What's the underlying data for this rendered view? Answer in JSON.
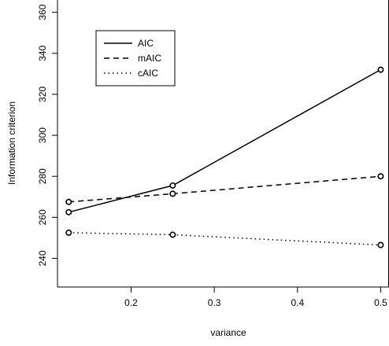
{
  "chart_data": {
    "type": "line",
    "title": "",
    "xlabel": "variance",
    "ylabel": "Information criterion",
    "x": [
      0.125,
      0.25,
      0.5
    ],
    "x_ticks": [
      0.2,
      0.3,
      0.4,
      0.5
    ],
    "x_tick_labels": [
      "0.2",
      "0.3",
      "0.4",
      "0.5"
    ],
    "y_ticks": [
      240,
      260,
      280,
      300,
      320,
      340,
      360
    ],
    "y_tick_labels": [
      "240",
      "260",
      "280",
      "300",
      "320",
      "340",
      "360"
    ],
    "xlim": [
      0.1115,
      0.51
    ],
    "ylim": [
      226,
      366
    ],
    "grid": false,
    "legend_position": "top-left",
    "series": [
      {
        "name": "AIC",
        "values": [
          262.5,
          275.5,
          332
        ],
        "line_style": "solid"
      },
      {
        "name": "mAIC",
        "values": [
          267.5,
          271.5,
          280
        ],
        "line_style": "dashed"
      },
      {
        "name": "cAIC",
        "values": [
          252.5,
          251.5,
          246.5
        ],
        "line_style": "dotted"
      }
    ],
    "colors": {
      "line": "#000000",
      "marker_fill": "#ffffff"
    }
  }
}
